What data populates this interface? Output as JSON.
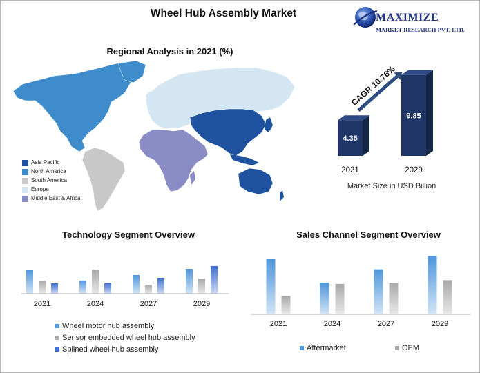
{
  "title": "Wheel Hub Assembly Market",
  "logo": {
    "line1": "MAXIMIZE",
    "line2": "MARKET RESEARCH PVT. LTD."
  },
  "colors": {
    "asia_pacific": "#1f53a0",
    "north_america": "#3f8ccc",
    "south_america": "#c8c8c8",
    "europe": "#d3e6f1",
    "middle_east_africa": "#8a8cc6",
    "market_bar": "#1f3566",
    "series_blue": "#4f97dc",
    "series_gray": "#a8a8a8",
    "series_dark_blue": "#3d6fd1"
  },
  "map": {
    "title": "Regional Analysis in 2021 (%)",
    "legend": [
      {
        "label": "Asia Pacific",
        "color_key": "asia_pacific"
      },
      {
        "label": "North America",
        "color_key": "north_america"
      },
      {
        "label": "South America",
        "color_key": "south_america"
      },
      {
        "label": "Europe",
        "color_key": "europe"
      },
      {
        "label": "Middle East & Africa",
        "color_key": "middle_east_africa"
      }
    ]
  },
  "chart_data": [
    {
      "type": "bar",
      "id": "market_size",
      "categories": [
        "2021",
        "2029"
      ],
      "values": [
        4.35,
        9.85
      ],
      "data_labels": [
        "4.35",
        "9.85"
      ],
      "xlabel": "Market Size in USD Billion",
      "annotation": "CAGR 10.76%",
      "ylim": [
        0,
        10.5
      ]
    },
    {
      "type": "bar",
      "id": "technology",
      "title": "Technology Segment Overview",
      "categories": [
        "2021",
        "2024",
        "2027",
        "2029"
      ],
      "series": [
        {
          "name": "Wheel motor hub assembly",
          "color_key": "series_blue",
          "values": [
            34,
            19,
            27,
            36
          ]
        },
        {
          "name": "Sensor embedded wheel hub assembly",
          "color_key": "series_gray",
          "values": [
            19,
            35,
            13,
            22
          ]
        },
        {
          "name": "Splined wheel hub assembly",
          "color_key": "series_dark_blue",
          "values": [
            15,
            15,
            23,
            40
          ]
        }
      ],
      "ylim": [
        0,
        44
      ],
      "legend_position": "bottom"
    },
    {
      "type": "bar",
      "id": "sales_channel",
      "title": "Sales Channel Segment Overview",
      "categories": [
        "2021",
        "2024",
        "2027",
        "2029"
      ],
      "series": [
        {
          "name": "Aftermarket",
          "color_key": "series_blue",
          "values": [
            87,
            50,
            71,
            92
          ]
        },
        {
          "name": "OEM",
          "color_key": "series_gray",
          "values": [
            29,
            48,
            50,
            54
          ]
        }
      ],
      "ylim": [
        0,
        100
      ],
      "legend_position": "bottom"
    }
  ]
}
